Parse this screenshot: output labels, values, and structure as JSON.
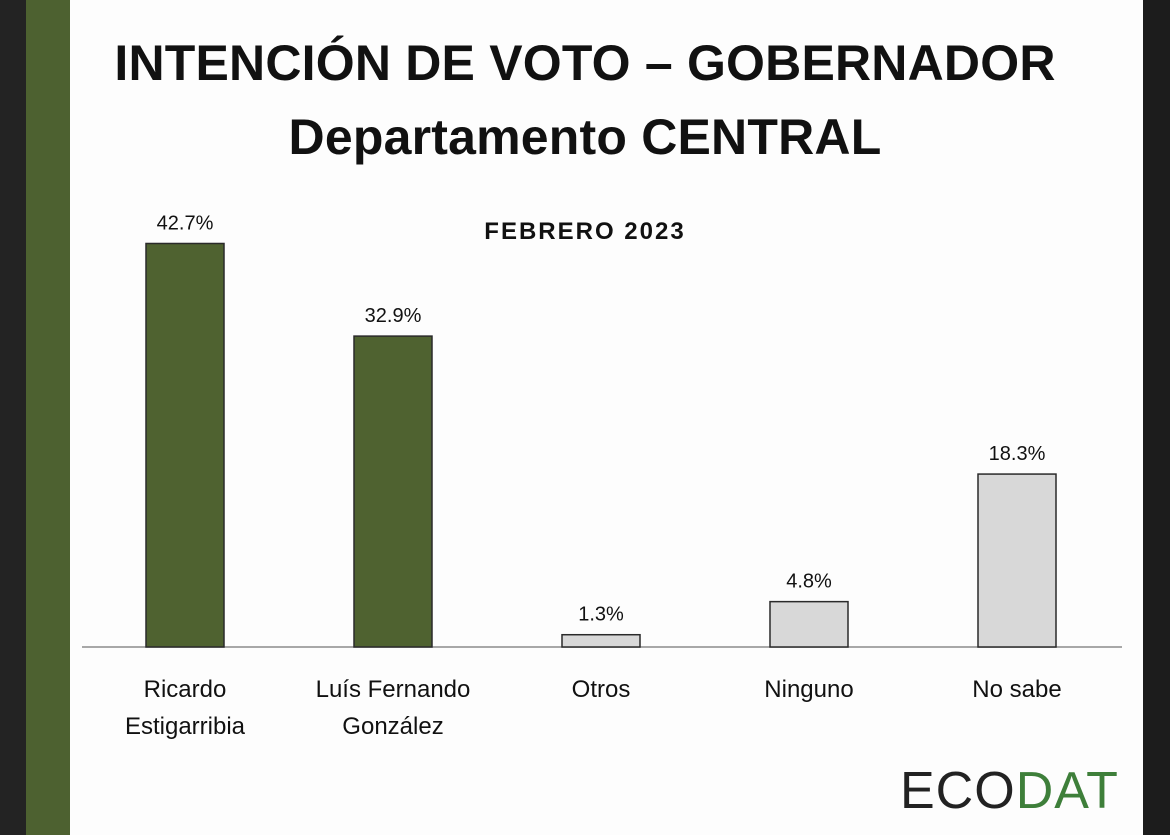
{
  "slide": {
    "title_line1": "INTENCIÓN DE VOTO – GOBERNADOR",
    "title_line2": "Departamento CENTRAL"
  },
  "chart_data": {
    "type": "bar",
    "title": "FEBRERO 2023",
    "categories": [
      "Ricardo\nEstigarribia",
      "Luís Fernando\nGonzález",
      "Otros",
      "Ninguno",
      "No sabe"
    ],
    "values": [
      42.7,
      32.9,
      1.3,
      4.8,
      18.3
    ],
    "value_labels": [
      "42.7%",
      "32.9%",
      "1.3%",
      "4.8%",
      "18.3%"
    ],
    "bar_colors": [
      "#4f6230",
      "#4f6230",
      "#d8d8d8",
      "#d8d8d8",
      "#d8d8d8"
    ],
    "ylim": [
      0,
      45
    ],
    "grid": false,
    "legend": "none"
  },
  "logo": {
    "part1": "EC",
    "part2": "O",
    "part3": "DAT",
    "color_dark": "#222222",
    "color_green": "#3e7f3a"
  },
  "colors": {
    "accent_band": "#4d6130",
    "candidate_bar": "#4f6230",
    "other_bar": "#d8d8d8"
  }
}
